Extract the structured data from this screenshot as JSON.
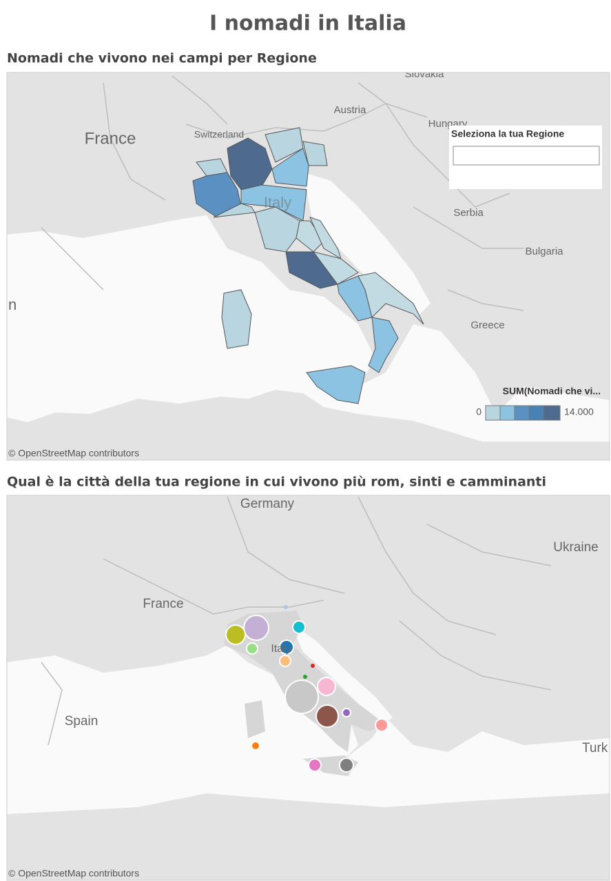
{
  "title": "I nomadi in Italia",
  "map1": {
    "title": "Nomadi che vivono nei campi per Regione",
    "place_labels": [
      "France",
      "Switzerland",
      "Austria",
      "Hungary",
      "Slovakia",
      "Italy",
      "Serbia",
      "Bulgaria",
      "Greece",
      "n"
    ],
    "filter_label": "Seleziona la tua Regione",
    "legend": {
      "title": "SUM(Nomadi che vi...",
      "min_label": "0",
      "max_label": "14.000"
    },
    "attribution": "© OpenStreetMap contributors"
  },
  "map2": {
    "title": "Qual è la città della tua regione in cui vivono più rom, sinti e camminanti",
    "place_labels": [
      "Germany",
      "Ukraine",
      "France",
      "Italy",
      "Spain",
      "Turk"
    ],
    "attribution": "© OpenStreetMap contributors"
  }
}
